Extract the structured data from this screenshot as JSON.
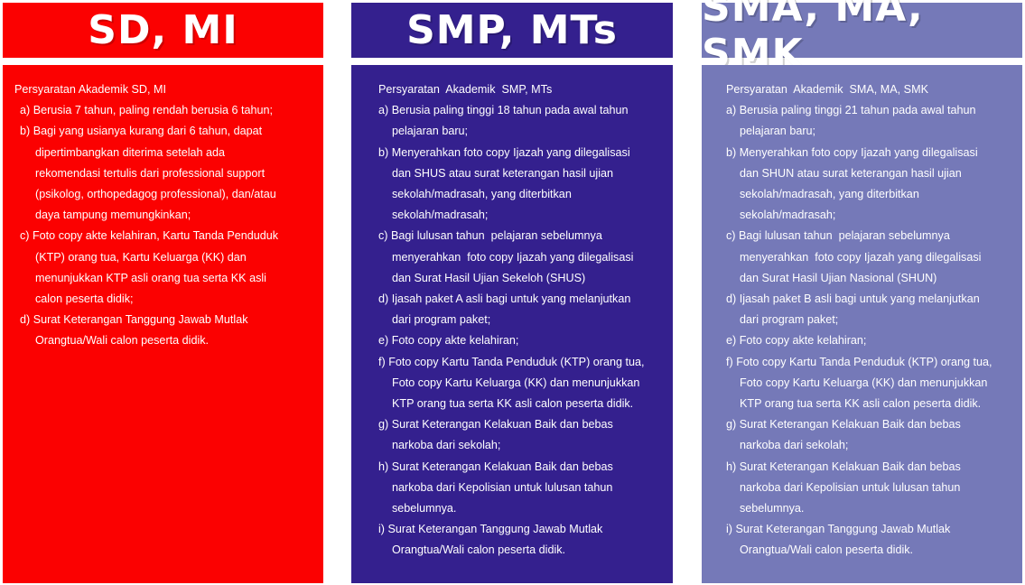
{
  "colors": {
    "sd_red": "#fb0101",
    "smp_purple": "#34208e",
    "sma_lavender": "#7579b8",
    "text": "#ffffff"
  },
  "columns": [
    {
      "heading": "SD, MI",
      "title": "Persyaratan Akademik SD, MI",
      "items": [
        [
          "a) Berusia 7 tahun, paling rendah berusia 6 tahun;"
        ],
        [
          "b) Bagi yang usianya kurang dari 6 tahun, dapat",
          "dipertimbangkan diterima setelah ada",
          "rekomendasi tertulis dari professional support",
          "(psikolog, orthopedagog professional), dan/atau",
          "daya tampung memungkinkan;"
        ],
        [
          "c) Foto copy akte kelahiran, Kartu Tanda Penduduk",
          "(KTP) orang tua, Kartu Keluarga (KK) dan",
          "menunjukkan KTP asli orang tua serta KK asli",
          "calon peserta didik;"
        ],
        [
          "d) Surat Keterangan Tanggung Jawab Mutlak",
          "Orangtua/Wali calon peserta didik."
        ]
      ]
    },
    {
      "heading": "SMP, MTs",
      "title": "Persyaratan  Akademik  SMP, MTs",
      "items": [
        [
          "a) Berusia paling tinggi 18 tahun pada awal tahun",
          "pelajaran baru;"
        ],
        [
          "b) Menyerahkan foto copy Ijazah yang dilegalisasi",
          "dan SHUS atau surat keterangan hasil ujian",
          "sekolah/madrasah, yang diterbitkan",
          "sekolah/madrasah;"
        ],
        [
          "c) Bagi lulusan tahun  pelajaran sebelumnya",
          "menyerahkan  foto copy Ijazah yang dilegalisasi",
          "dan Surat Hasil Ujian Sekeloh (SHUS)"
        ],
        [
          "d) Ijasah paket A asli bagi untuk yang melanjutkan",
          "dari program paket;"
        ],
        [
          "e) Foto copy akte kelahiran;"
        ],
        [
          "f) Foto copy Kartu Tanda Penduduk (KTP) orang tua,",
          "Foto copy Kartu Keluarga (KK) dan menunjukkan",
          "KTP orang tua serta KK asli calon peserta didik."
        ],
        [
          "g) Surat Keterangan Kelakuan Baik dan bebas",
          "narkoba dari sekolah;"
        ],
        [
          "h) Surat Keterangan Kelakuan Baik dan bebas",
          "narkoba dari Kepolisian untuk lulusan tahun",
          "sebelumnya."
        ],
        [
          "i) Surat Keterangan Tanggung Jawab Mutlak",
          "Orangtua/Wali calon peserta didik."
        ]
      ]
    },
    {
      "heading": "SMA, MA, SMK",
      "title": "Persyaratan  Akademik  SMA, MA, SMK",
      "items": [
        [
          "a) Berusia paling tinggi 21 tahun pada awal tahun",
          "pelajaran baru;"
        ],
        [
          "b) Menyerahkan foto copy Ijazah yang dilegalisasi",
          "dan SHUN atau surat keterangan hasil ujian",
          "sekolah/madrasah, yang diterbitkan",
          "sekolah/madrasah;"
        ],
        [
          "c) Bagi lulusan tahun  pelajaran sebelumnya",
          "menyerahkan  foto copy Ijazah yang dilegalisasi",
          "dan Surat Hasil Ujian Nasional (SHUN)"
        ],
        [
          "d) Ijasah paket B asli bagi untuk yang melanjutkan",
          "dari program paket;"
        ],
        [
          "e) Foto copy akte kelahiran;"
        ],
        [
          "f) Foto copy Kartu Tanda Penduduk (KTP) orang tua,",
          "Foto copy Kartu Keluarga (KK) dan menunjukkan",
          "KTP orang tua serta KK asli calon peserta didik."
        ],
        [
          "g) Surat Keterangan Kelakuan Baik dan bebas",
          "narkoba dari sekolah;"
        ],
        [
          "h) Surat Keterangan Kelakuan Baik dan bebas",
          "narkoba dari Kepolisian untuk lulusan tahun",
          "sebelumnya."
        ],
        [
          "i) Surat Keterangan Tanggung Jawab Mutlak",
          "Orangtua/Wali calon peserta didik."
        ]
      ]
    }
  ]
}
